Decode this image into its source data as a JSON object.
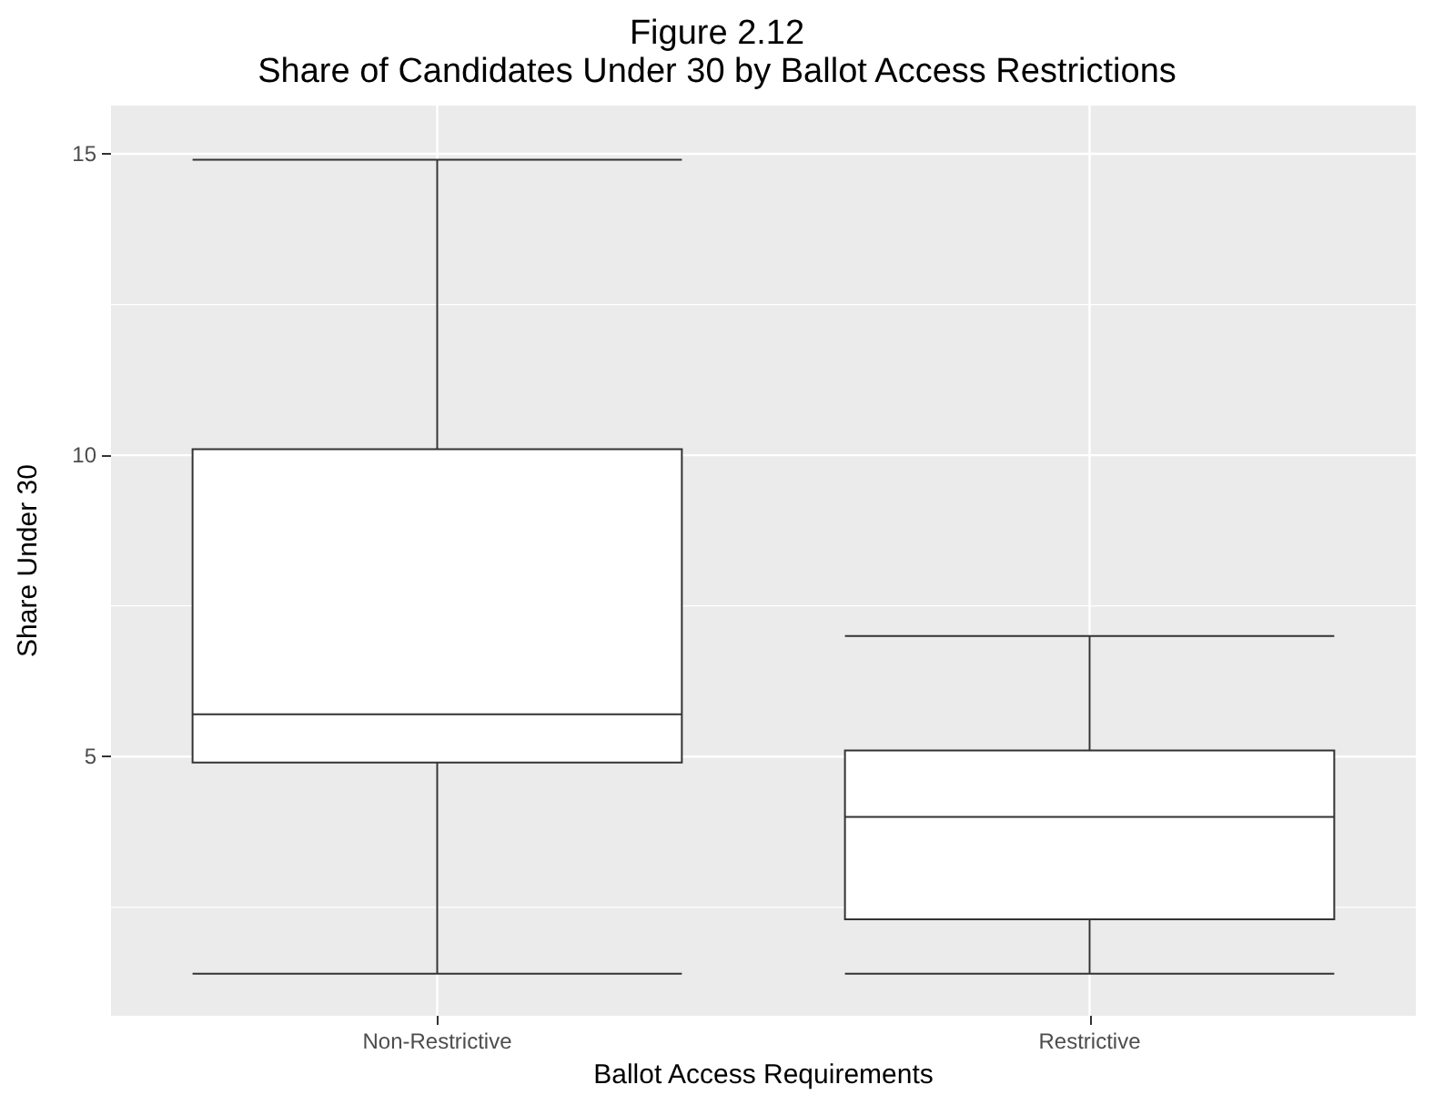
{
  "chart_data": {
    "type": "box",
    "title": "Figure 2.12\nShare of Candidates Under 30 by Ballot Access Restrictions",
    "xlabel": "Ballot Access Requirements",
    "ylabel": "Share Under 30",
    "categories": [
      "Non-Restrictive",
      "Restrictive"
    ],
    "boxes": [
      {
        "low": 1.4,
        "q1": 4.9,
        "median": 5.7,
        "q3": 10.1,
        "high": 14.9
      },
      {
        "low": 1.4,
        "q1": 2.3,
        "median": 4.0,
        "q3": 5.1,
        "high": 7.0
      }
    ],
    "ylim": [
      0.7,
      15.8
    ],
    "yticks": [
      5,
      10,
      15
    ],
    "grid": true
  }
}
